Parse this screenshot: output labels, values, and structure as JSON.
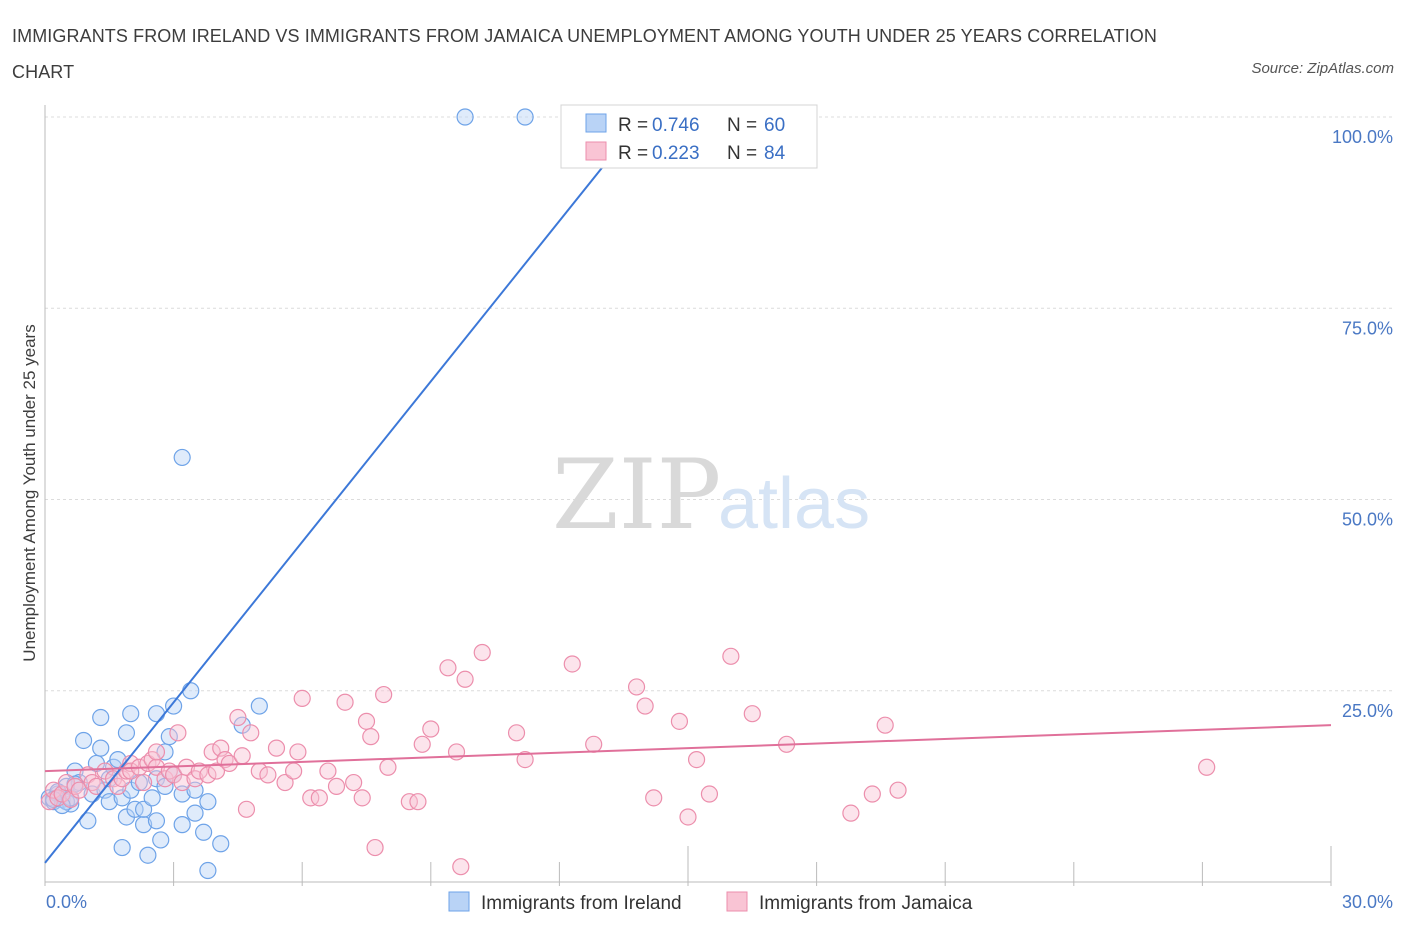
{
  "title": "IMMIGRANTS FROM IRELAND VS IMMIGRANTS FROM JAMAICA UNEMPLOYMENT AMONG YOUTH UNDER 25 YEARS CORRELATION CHART",
  "source": "Source: ZipAtlas.com",
  "watermark": {
    "zip": "ZIP",
    "atlas": "atlas"
  },
  "chart_data": {
    "type": "scatter",
    "title": "IMMIGRANTS FROM IRELAND VS IMMIGRANTS FROM JAMAICA UNEMPLOYMENT AMONG YOUTH UNDER 25 YEARS CORRELATION CHART",
    "xlabel": "",
    "ylabel": "Unemployment Among Youth under 25 years",
    "xlim": [
      0,
      30
    ],
    "ylim": [
      0,
      100
    ],
    "x_tick_labels": {
      "min": "0.0%",
      "max": "30.0%"
    },
    "y_ticks": [
      {
        "value": 25,
        "label": "25.0%"
      },
      {
        "value": 50,
        "label": "50.0%"
      },
      {
        "value": 75,
        "label": "75.0%"
      },
      {
        "value": 100,
        "label": "100.0%"
      }
    ],
    "grid": true,
    "stats": [
      {
        "r_label": "R = ",
        "r": "0.746",
        "n_label": "N = ",
        "n": "60"
      },
      {
        "r_label": "R = ",
        "r": "0.223",
        "n_label": "N = ",
        "n": "84"
      }
    ],
    "series": [
      {
        "name": "Immigrants from Ireland",
        "color": "#6ea3e8",
        "fill": "#b9d3f6",
        "line_color": "#3c78d8",
        "trend": {
          "x": [
            0,
            13.8
          ],
          "y": [
            2.5,
            99
          ]
        },
        "points": [
          [
            0.1,
            11
          ],
          [
            0.2,
            10.5
          ],
          [
            0.3,
            11.5
          ],
          [
            0.4,
            10.8
          ],
          [
            0.5,
            12.5
          ],
          [
            0.6,
            10.2
          ],
          [
            0.7,
            14.5
          ],
          [
            0.8,
            13
          ],
          [
            0.9,
            18.5
          ],
          [
            1.0,
            8
          ],
          [
            1.1,
            11.5
          ],
          [
            1.2,
            15.5
          ],
          [
            1.3,
            17.5
          ],
          [
            1.3,
            21.5
          ],
          [
            1.4,
            12
          ],
          [
            1.5,
            10.5
          ],
          [
            1.5,
            13.5
          ],
          [
            1.6,
            15
          ],
          [
            1.7,
            16
          ],
          [
            1.8,
            11
          ],
          [
            1.8,
            4.5
          ],
          [
            1.9,
            8.5
          ],
          [
            1.9,
            19.5
          ],
          [
            2.0,
            22
          ],
          [
            2.0,
            12
          ],
          [
            2.1,
            9.5
          ],
          [
            2.2,
            13
          ],
          [
            2.3,
            7.5
          ],
          [
            2.3,
            9.5
          ],
          [
            2.4,
            3.5
          ],
          [
            2.5,
            11
          ],
          [
            2.6,
            22
          ],
          [
            2.6,
            13.5
          ],
          [
            2.6,
            8
          ],
          [
            2.7,
            5.5
          ],
          [
            2.8,
            12.5
          ],
          [
            2.8,
            17
          ],
          [
            2.9,
            19
          ],
          [
            3.0,
            23
          ],
          [
            3.0,
            14
          ],
          [
            3.2,
            7.5
          ],
          [
            3.2,
            11.5
          ],
          [
            3.2,
            55.5
          ],
          [
            3.4,
            25
          ],
          [
            3.5,
            12
          ],
          [
            3.5,
            9
          ],
          [
            3.7,
            6.5
          ],
          [
            3.8,
            10.5
          ],
          [
            3.8,
            1.5
          ],
          [
            4.1,
            5
          ],
          [
            4.6,
            20.5
          ],
          [
            5.0,
            23
          ],
          [
            0.5,
            10.5
          ],
          [
            0.6,
            11
          ],
          [
            0.4,
            10
          ],
          [
            0.3,
            11.8
          ],
          [
            0.2,
            10.8
          ],
          [
            0.7,
            12.8
          ],
          [
            9.8,
            100
          ],
          [
            11.2,
            100
          ]
        ]
      },
      {
        "name": "Immigrants from Jamaica",
        "color": "#ec8eac",
        "fill": "#f9c4d4",
        "line_color": "#e0709a",
        "trend": {
          "x": [
            0,
            30
          ],
          "y": [
            14.5,
            20.5
          ]
        },
        "points": [
          [
            0.1,
            10.5
          ],
          [
            0.2,
            12
          ],
          [
            0.3,
            11
          ],
          [
            0.4,
            11.5
          ],
          [
            0.5,
            13
          ],
          [
            0.6,
            10.8
          ],
          [
            0.7,
            12.5
          ],
          [
            0.8,
            12
          ],
          [
            1.0,
            14
          ],
          [
            1.1,
            13
          ],
          [
            1.2,
            12.5
          ],
          [
            1.4,
            14.5
          ],
          [
            1.6,
            13.5
          ],
          [
            1.7,
            12.5
          ],
          [
            1.8,
            13.5
          ],
          [
            1.9,
            14.5
          ],
          [
            2.0,
            15.5
          ],
          [
            2.0,
            14.5
          ],
          [
            2.2,
            15
          ],
          [
            2.3,
            13
          ],
          [
            2.4,
            15.5
          ],
          [
            2.5,
            16
          ],
          [
            2.6,
            15
          ],
          [
            2.6,
            17
          ],
          [
            2.8,
            13.5
          ],
          [
            2.9,
            14.5
          ],
          [
            3.0,
            14
          ],
          [
            3.1,
            19.5
          ],
          [
            3.2,
            13
          ],
          [
            3.3,
            15
          ],
          [
            3.5,
            13.5
          ],
          [
            3.6,
            14.5
          ],
          [
            3.8,
            14
          ],
          [
            3.9,
            17
          ],
          [
            4.0,
            14.5
          ],
          [
            4.1,
            17.5
          ],
          [
            4.2,
            16
          ],
          [
            4.3,
            15.5
          ],
          [
            4.5,
            21.5
          ],
          [
            4.6,
            16.5
          ],
          [
            4.7,
            9.5
          ],
          [
            4.8,
            19.5
          ],
          [
            5.0,
            14.5
          ],
          [
            5.2,
            14
          ],
          [
            5.4,
            17.5
          ],
          [
            5.6,
            13
          ],
          [
            5.8,
            14.5
          ],
          [
            5.9,
            17
          ],
          [
            6.0,
            24
          ],
          [
            6.2,
            11
          ],
          [
            6.4,
            11
          ],
          [
            6.6,
            14.5
          ],
          [
            6.8,
            12.5
          ],
          [
            7.0,
            23.5
          ],
          [
            7.2,
            13
          ],
          [
            7.4,
            11
          ],
          [
            7.5,
            21
          ],
          [
            7.6,
            19
          ],
          [
            7.7,
            4.5
          ],
          [
            7.9,
            24.5
          ],
          [
            8.0,
            15
          ],
          [
            8.5,
            10.5
          ],
          [
            8.7,
            10.5
          ],
          [
            8.8,
            18
          ],
          [
            9.0,
            20
          ],
          [
            9.4,
            28
          ],
          [
            9.6,
            17
          ],
          [
            9.7,
            2
          ],
          [
            9.8,
            26.5
          ],
          [
            10.2,
            30
          ],
          [
            11.0,
            19.5
          ],
          [
            11.2,
            16
          ],
          [
            12.3,
            28.5
          ],
          [
            12.8,
            18
          ],
          [
            13.8,
            25.5
          ],
          [
            14.0,
            23
          ],
          [
            14.2,
            11
          ],
          [
            14.8,
            21
          ],
          [
            15.0,
            8.5
          ],
          [
            15.2,
            16
          ],
          [
            15.5,
            11.5
          ],
          [
            16.0,
            29.5
          ],
          [
            16.5,
            22
          ],
          [
            17.3,
            18
          ]
        ]
      }
    ]
  },
  "extra_jamaica_points": [
    [
      18.8,
      9
    ],
    [
      19.3,
      11.5
    ],
    [
      19.9,
      12
    ],
    [
      19.6,
      20.5
    ],
    [
      27.1,
      15
    ]
  ],
  "legend": {
    "items": [
      {
        "label": "Immigrants from Ireland"
      },
      {
        "label": "Immigrants from Jamaica"
      }
    ]
  }
}
